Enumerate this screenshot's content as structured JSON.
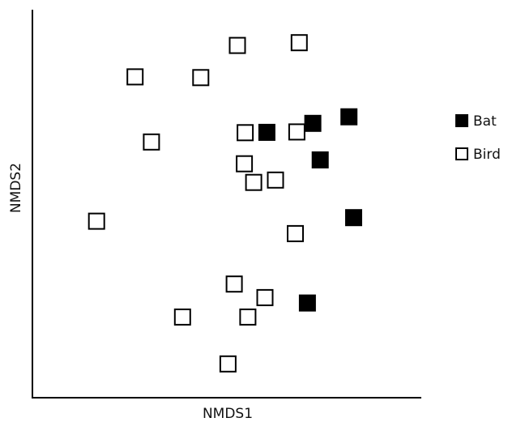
{
  "chart_data": {
    "type": "scatter",
    "title": "",
    "xlabel": "NMDS1",
    "ylabel": "NMDS2",
    "xlim": [
      0,
      100
    ],
    "ylim": [
      0,
      100
    ],
    "grid": false,
    "legend": {
      "placement": "right",
      "entries": [
        "Bat",
        "Bird"
      ]
    },
    "series": [
      {
        "name": "Bat",
        "marker": "filled-square",
        "color": "#000000",
        "points": [
          [
            60.3,
            68.4
          ],
          [
            72.1,
            70.7
          ],
          [
            81.4,
            72.4
          ],
          [
            74.0,
            61.3
          ],
          [
            82.6,
            46.4
          ],
          [
            70.7,
            24.4
          ]
        ]
      },
      {
        "name": "Bird",
        "marker": "open-square",
        "color": "#000000",
        "points": [
          [
            26.4,
            82.7
          ],
          [
            43.3,
            82.5
          ],
          [
            52.7,
            90.8
          ],
          [
            68.6,
            91.5
          ],
          [
            30.6,
            65.9
          ],
          [
            54.7,
            68.3
          ],
          [
            68.0,
            68.5
          ],
          [
            54.5,
            60.3
          ],
          [
            56.9,
            55.5
          ],
          [
            62.5,
            56.1
          ],
          [
            16.5,
            45.5
          ],
          [
            67.6,
            42.3
          ],
          [
            51.9,
            29.3
          ],
          [
            59.8,
            25.8
          ],
          [
            38.6,
            20.8
          ],
          [
            55.4,
            20.8
          ],
          [
            50.3,
            8.7
          ]
        ]
      }
    ]
  }
}
